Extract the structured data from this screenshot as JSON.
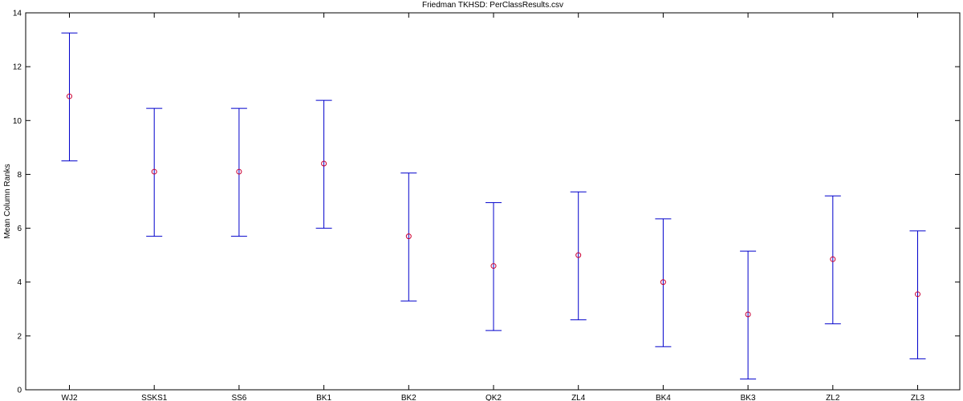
{
  "chart_data": {
    "type": "errorbar",
    "title": "Friedman TKHSD: PerClassResults.csv",
    "xlabel": "",
    "ylabel": "Mean Column Ranks",
    "ylim": [
      0,
      14
    ],
    "yticks": [
      0,
      2,
      4,
      6,
      8,
      10,
      12,
      14
    ],
    "grid": false,
    "colors": {
      "errorbar": "#0000cc",
      "marker": "#cc0033",
      "axis": "#000000"
    },
    "categories": [
      "WJ2",
      "SSKS1",
      "SS6",
      "BK1",
      "BK2",
      "QK2",
      "ZL4",
      "BK4",
      "BK3",
      "ZL2",
      "ZL3"
    ],
    "series": [
      {
        "mean": [
          10.9,
          8.1,
          8.1,
          8.4,
          5.7,
          4.6,
          5.0,
          4.0,
          2.8,
          4.85,
          3.55
        ],
        "lower": [
          8.5,
          5.7,
          5.7,
          6.0,
          3.3,
          2.2,
          2.6,
          1.6,
          0.4,
          2.45,
          1.15
        ],
        "upper": [
          13.25,
          10.45,
          10.45,
          10.75,
          8.05,
          6.95,
          7.35,
          6.35,
          5.15,
          7.2,
          5.9
        ]
      }
    ]
  }
}
